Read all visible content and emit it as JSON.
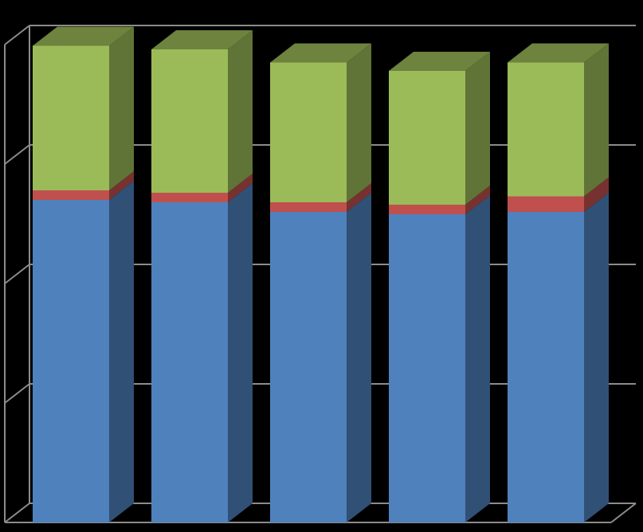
{
  "chart_data": {
    "type": "bar",
    "stacked": true,
    "three_d": true,
    "categories": [
      "",
      "",
      "",
      "",
      ""
    ],
    "series": [
      {
        "color": "#4f81bd",
        "values": [
          2.7,
          2.68,
          2.6,
          2.58,
          2.6
        ]
      },
      {
        "color": "#c0504d",
        "values": [
          0.08,
          0.08,
          0.08,
          0.08,
          0.13
        ]
      },
      {
        "color": "#9bbb59",
        "values": [
          1.21,
          1.2,
          1.17,
          1.12,
          1.12
        ]
      }
    ],
    "ylim": [
      0,
      4
    ],
    "y_gridlines": [
      0,
      1,
      2,
      3,
      4
    ],
    "grid": true,
    "legend": "none",
    "title": "",
    "xlabel": "",
    "ylabel": "",
    "colors": {
      "background": "#000000",
      "axis_lines": "#8c8c8c",
      "gridlines": "#8c8c8c"
    }
  }
}
